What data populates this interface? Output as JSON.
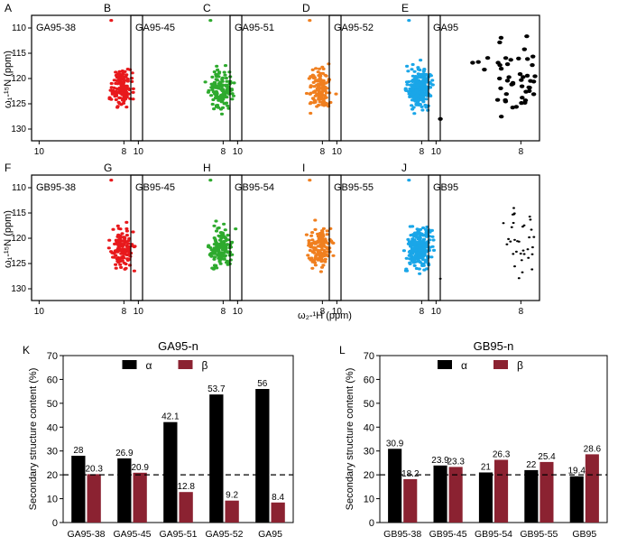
{
  "nmr": {
    "y_axis_label": "ω₁-¹⁵N (ppm)",
    "x_axis_label": "ω₂-¹H (ppm)",
    "y_ticks": [
      "110",
      "115",
      "120",
      "125",
      "130"
    ],
    "x_ticks": [
      "10",
      "8"
    ],
    "panels": [
      {
        "letter": "A",
        "label": "GA95-38",
        "color": "#e8191c",
        "style": "red"
      },
      {
        "letter": "B",
        "label": "GA95-45",
        "color": "#2eaa2e",
        "style": "green"
      },
      {
        "letter": "C",
        "label": "GA95-51",
        "color": "#f07f1f",
        "style": "orange"
      },
      {
        "letter": "D",
        "label": "GA95-52",
        "color": "#1aa6e8",
        "style": "blue"
      },
      {
        "letter": "E",
        "label": "GA95",
        "color": "#000000",
        "style": "black"
      },
      {
        "letter": "F",
        "label": "GB95-38",
        "color": "#e8191c",
        "style": "red"
      },
      {
        "letter": "G",
        "label": "GB95-45",
        "color": "#2eaa2e",
        "style": "green"
      },
      {
        "letter": "H",
        "label": "GB95-54",
        "color": "#f07f1f",
        "style": "orange"
      },
      {
        "letter": "I",
        "label": "GB95-55",
        "color": "#1aa6e8",
        "style": "blue"
      },
      {
        "letter": "J",
        "label": "GB95",
        "color": "#000000",
        "style": "black-sparse"
      }
    ]
  },
  "chart_data": [
    {
      "type": "bar",
      "panel_letter": "K",
      "title": "GA95-n",
      "categories": [
        "GA95-38",
        "GA95-45",
        "GA95-51",
        "GA95-52",
        "GA95"
      ],
      "series": [
        {
          "name": "α",
          "color": "#000000",
          "values": [
            28,
            26.9,
            42.1,
            53.7,
            56
          ],
          "labels": [
            "28",
            "26.9",
            "42.1",
            "53.7",
            "56"
          ]
        },
        {
          "name": "β",
          "color": "#8b2231",
          "values": [
            20.3,
            20.9,
            12.8,
            9.2,
            8.4
          ],
          "labels": [
            "20.3",
            "20.9",
            "12.8",
            "9.2",
            "8.4"
          ]
        }
      ],
      "ylabel": "Secondary structure content (%)",
      "ylim": [
        0,
        70
      ],
      "yticks": [
        "0",
        "10",
        "20",
        "30",
        "40",
        "50",
        "60",
        "70"
      ],
      "reference_line": 20,
      "legend": "top-center"
    },
    {
      "type": "bar",
      "panel_letter": "L",
      "title": "GB95-n",
      "categories": [
        "GB95-38",
        "GB95-45",
        "GB95-54",
        "GB95-55",
        "GB95"
      ],
      "series": [
        {
          "name": "α",
          "color": "#000000",
          "values": [
            30.9,
            23.9,
            21,
            22,
            19.4
          ],
          "labels": [
            "30.9",
            "23.9",
            "21",
            "22",
            "19.4"
          ]
        },
        {
          "name": "β",
          "color": "#8b2231",
          "values": [
            18.2,
            23.3,
            26.3,
            25.4,
            28.6
          ],
          "labels": [
            "18.2",
            "23.3",
            "26.3",
            "25.4",
            "28.6"
          ]
        }
      ],
      "ylabel": "Secondary structure content (%)",
      "ylim": [
        0,
        70
      ],
      "yticks": [
        "0",
        "10",
        "20",
        "30",
        "40",
        "50",
        "60",
        "70"
      ],
      "reference_line": 20,
      "legend": "top-center"
    }
  ]
}
